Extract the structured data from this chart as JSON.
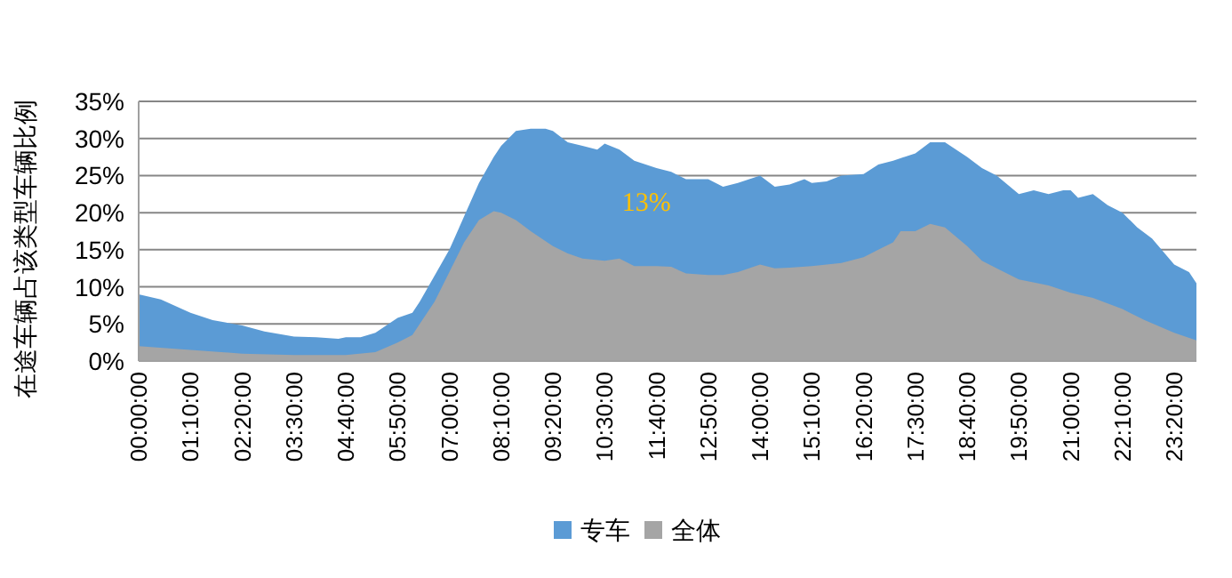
{
  "chart_data": {
    "type": "area",
    "ylabel": "在途车辆占该类型车辆比例",
    "series": [
      {
        "name": "专车",
        "color": "#5b9bd5",
        "x": [
          0,
          0.5,
          1.167,
          1.667,
          2.333,
          2.833,
          3.5,
          4,
          4.5,
          4.667,
          5,
          5.333,
          5.833,
          6.167,
          6.333,
          6.667,
          7,
          7.333,
          7.667,
          8,
          8.167,
          8.5,
          8.833,
          9.167,
          9.333,
          9.667,
          10,
          10.333,
          10.5,
          10.833,
          11.167,
          11.667,
          12,
          12.333,
          12.833,
          13.167,
          13.5,
          14,
          14.333,
          14.667,
          15,
          15.167,
          15.5,
          15.833,
          16.333,
          16.667,
          17,
          17.5,
          17.833,
          18.167,
          18.667,
          19,
          19.333,
          19.833,
          20.167,
          20.5,
          20.833,
          21,
          21.167,
          21.5,
          21.833,
          22.167,
          22.5,
          22.833,
          23.333,
          23.667,
          23.833
        ],
        "values": [
          9.0,
          8.3,
          6.5,
          5.5,
          4.8,
          4.0,
          3.3,
          3.2,
          3.0,
          3.2,
          3.2,
          3.8,
          5.8,
          6.5,
          8,
          11.5,
          15,
          19.5,
          24,
          27.5,
          29,
          31,
          31.3,
          31.3,
          31,
          29.5,
          29,
          28.5,
          29.3,
          28.5,
          27,
          26,
          25.5,
          24.5,
          24.5,
          23.5,
          24,
          25,
          23.5,
          23.8,
          24.5,
          24,
          24.2,
          25,
          25.2,
          26.5,
          27,
          28,
          29.5,
          29.5,
          27.5,
          26,
          25,
          22.5,
          23,
          22.5,
          23,
          23,
          22,
          22.5,
          21,
          20,
          18,
          16.5,
          13,
          12,
          10.5
        ]
      },
      {
        "name": "全体",
        "color": "#a5a5a5",
        "x": [
          0,
          1.167,
          2.333,
          3.5,
          4.667,
          5.333,
          5.833,
          6.167,
          6.333,
          6.667,
          7,
          7.333,
          7.667,
          8,
          8.167,
          8.5,
          8.833,
          9.333,
          9.667,
          10,
          10.5,
          10.833,
          11.167,
          11.667,
          12,
          12.333,
          12.833,
          13.167,
          13.5,
          14,
          14.333,
          14.667,
          15.167,
          15.833,
          16.333,
          16.667,
          17,
          17.167,
          17.5,
          17.833,
          18.167,
          18.667,
          19,
          19.333,
          19.833,
          20.5,
          21,
          21.5,
          22.167,
          22.667,
          23.333,
          23.833
        ],
        "values": [
          2.0,
          1.5,
          1.0,
          0.8,
          0.8,
          1.2,
          2.5,
          3.5,
          5,
          8,
          12,
          16,
          19,
          20.2,
          20,
          19,
          17.5,
          15.5,
          14.5,
          13.8,
          13.5,
          13.8,
          12.8,
          12.8,
          12.7,
          11.8,
          11.6,
          11.6,
          12,
          13,
          12.5,
          12.6,
          12.8,
          13.2,
          14,
          15,
          16,
          17.5,
          17.5,
          18.5,
          18,
          15.5,
          13.5,
          12.5,
          11,
          10.2,
          9.2,
          8.5,
          7,
          5.5,
          3.8,
          2.8
        ]
      }
    ],
    "xlim": [
      0,
      23.833333333333332
    ],
    "xticks": [
      {
        "value": 0,
        "label": "00:00:00"
      },
      {
        "value": 1.1666666666666667,
        "label": "01:10:00"
      },
      {
        "value": 2.3333333333333335,
        "label": "02:20:00"
      },
      {
        "value": 3.5,
        "label": "03:30:00"
      },
      {
        "value": 4.666666666666667,
        "label": "04:40:00"
      },
      {
        "value": 5.833333333333333,
        "label": "05:50:00"
      },
      {
        "value": 7,
        "label": "07:00:00"
      },
      {
        "value": 8.166666666666666,
        "label": "08:10:00"
      },
      {
        "value": 9.333333333333334,
        "label": "09:20:00"
      },
      {
        "value": 10.5,
        "label": "10:30:00"
      },
      {
        "value": 11.666666666666666,
        "label": "11:40:00"
      },
      {
        "value": 12.833333333333334,
        "label": "12:50:00"
      },
      {
        "value": 14,
        "label": "14:00:00"
      },
      {
        "value": 15.166666666666666,
        "label": "15:10:00"
      },
      {
        "value": 16.333333333333332,
        "label": "16:20:00"
      },
      {
        "value": 17.5,
        "label": "17:30:00"
      },
      {
        "value": 18.666666666666668,
        "label": "18:40:00"
      },
      {
        "value": 19.833333333333332,
        "label": "19:50:00"
      },
      {
        "value": 21,
        "label": "21:00:00"
      },
      {
        "value": 22.166666666666668,
        "label": "22:10:00"
      },
      {
        "value": 23.333333333333332,
        "label": "23:20:00"
      }
    ],
    "ylim": [
      0,
      35
    ],
    "yticks": [
      {
        "value": 0,
        "label": "0%"
      },
      {
        "value": 5,
        "label": "5%"
      },
      {
        "value": 10,
        "label": "10%"
      },
      {
        "value": 15,
        "label": "15%"
      },
      {
        "value": 20,
        "label": "20%"
      },
      {
        "value": 25,
        "label": "25%"
      },
      {
        "value": 30,
        "label": "30%"
      },
      {
        "value": 35,
        "label": "35%"
      }
    ],
    "grid": "y",
    "legend": "bottom",
    "annotations": [
      "13%"
    ]
  }
}
